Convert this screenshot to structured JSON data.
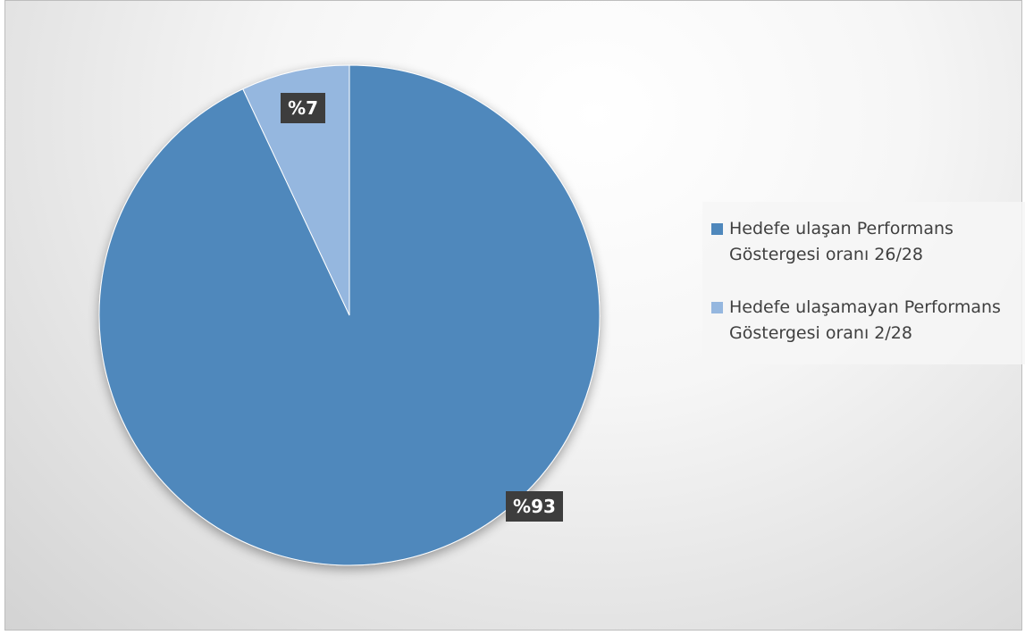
{
  "chart_data": {
    "type": "pie",
    "series": [
      {
        "name": "Hedefe ulaşan Performans Göstergesi oranı     26/28",
        "value": 93,
        "label": "%93",
        "color": "#4f88bc"
      },
      {
        "name": "Hedefe ulaşamayan Performans Göstergesi oranı 2/28",
        "value": 7,
        "label": "%7",
        "color": "#95b7df"
      }
    ],
    "legend_position": "right"
  },
  "legend": {
    "items": [
      {
        "text": "Hedefe ulaşan Performans\nGöstergesi oranı     26/28",
        "color": "#4f88bc"
      },
      {
        "text": "Hedefe ulaşamayan Performans\nGöstergesi oranı 2/28",
        "color": "#95b7df"
      }
    ]
  }
}
